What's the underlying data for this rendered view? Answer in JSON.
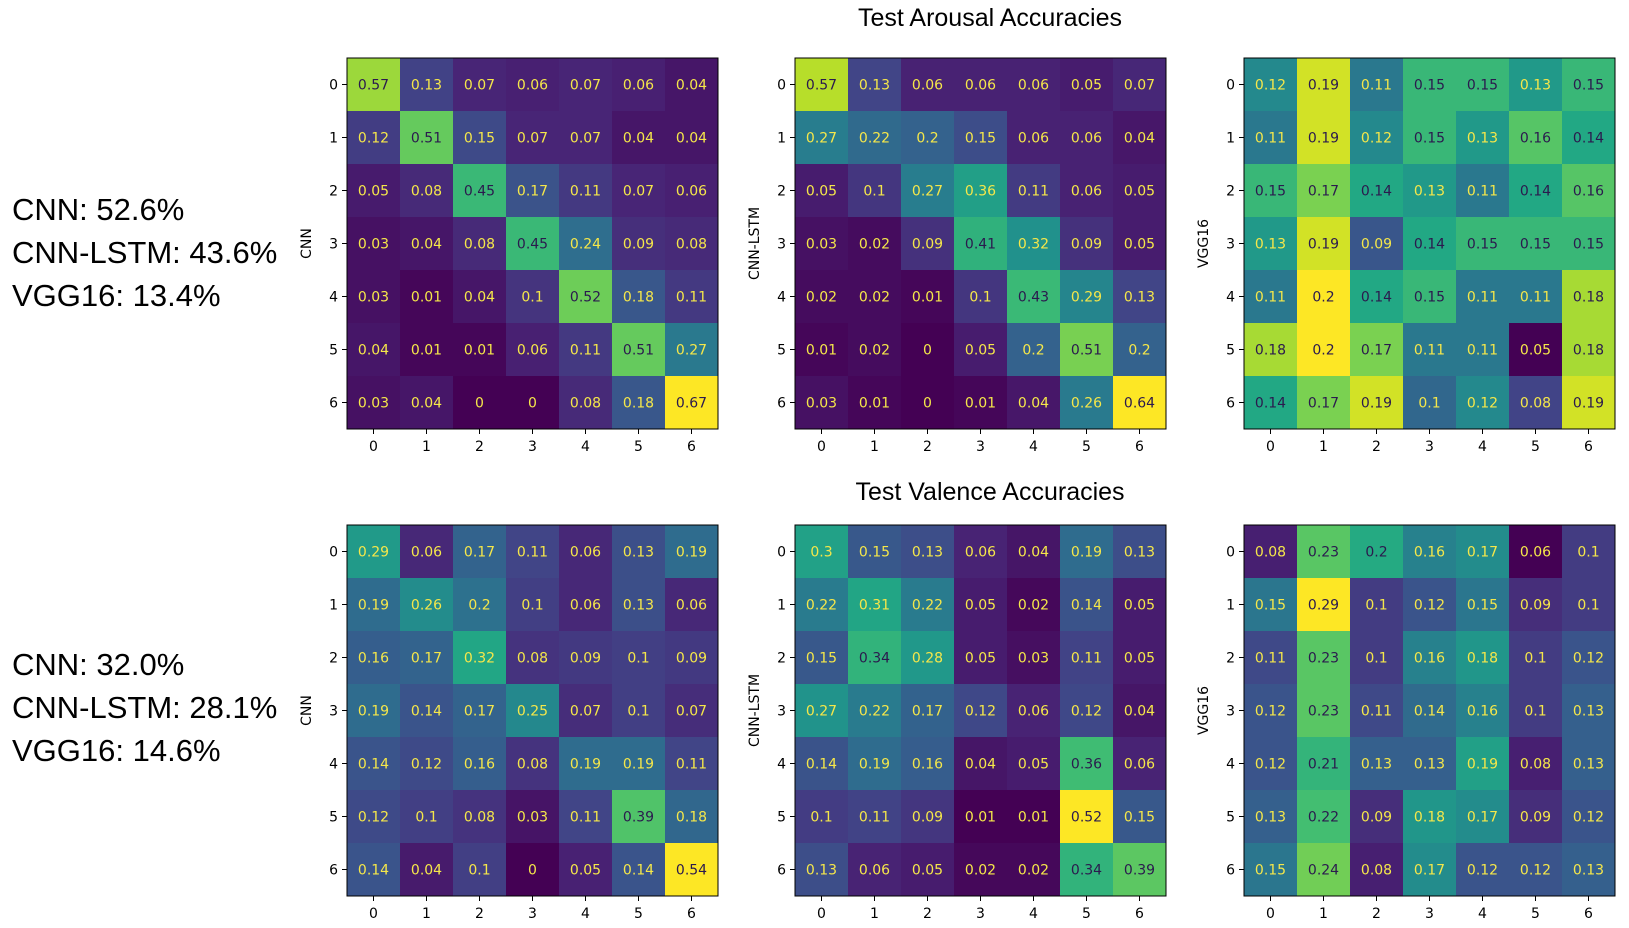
{
  "sections": [
    {
      "title": "Test Arousal Accuracies",
      "accuracies": [
        "CNN: 52.6%",
        "CNN-LSTM: 43.6%",
        "VGG16: 13.4%"
      ]
    },
    {
      "title": "Test Valence Accuracies",
      "accuracies": [
        "CNN: 32.0%",
        "CNN-LSTM: 28.1%",
        "VGG16: 14.6%"
      ]
    }
  ],
  "chart_data": [
    {
      "type": "heatmap",
      "section": "Test Arousal Accuracies",
      "ylabel": "CNN",
      "colormap": "viridis",
      "x_ticks": [
        "0",
        "1",
        "2",
        "3",
        "4",
        "5",
        "6"
      ],
      "y_ticks": [
        "0",
        "1",
        "2",
        "3",
        "4",
        "5",
        "6"
      ],
      "values": [
        [
          0.57,
          0.13,
          0.07,
          0.06,
          0.07,
          0.06,
          0.04
        ],
        [
          0.12,
          0.51,
          0.15,
          0.07,
          0.07,
          0.04,
          0.04
        ],
        [
          0.05,
          0.08,
          0.45,
          0.17,
          0.11,
          0.07,
          0.06
        ],
        [
          0.03,
          0.04,
          0.08,
          0.45,
          0.24,
          0.09,
          0.08
        ],
        [
          0.03,
          0.01,
          0.04,
          0.1,
          0.52,
          0.18,
          0.11
        ],
        [
          0.04,
          0.01,
          0.01,
          0.06,
          0.11,
          0.51,
          0.27
        ],
        [
          0.03,
          0.04,
          0,
          0,
          0.08,
          0.18,
          0.67
        ]
      ]
    },
    {
      "type": "heatmap",
      "section": "Test Arousal Accuracies",
      "ylabel": "CNN-LSTM",
      "colormap": "viridis",
      "x_ticks": [
        "0",
        "1",
        "2",
        "3",
        "4",
        "5",
        "6"
      ],
      "y_ticks": [
        "0",
        "1",
        "2",
        "3",
        "4",
        "5",
        "6"
      ],
      "values": [
        [
          0.57,
          0.13,
          0.06,
          0.06,
          0.06,
          0.05,
          0.07
        ],
        [
          0.27,
          0.22,
          0.2,
          0.15,
          0.06,
          0.06,
          0.04
        ],
        [
          0.05,
          0.1,
          0.27,
          0.36,
          0.11,
          0.06,
          0.05
        ],
        [
          0.03,
          0.02,
          0.09,
          0.41,
          0.32,
          0.09,
          0.05
        ],
        [
          0.02,
          0.02,
          0.01,
          0.1,
          0.43,
          0.29,
          0.13
        ],
        [
          0.01,
          0.02,
          0,
          0.05,
          0.2,
          0.51,
          0.2
        ],
        [
          0.03,
          0.01,
          0,
          0.01,
          0.04,
          0.26,
          0.64
        ]
      ]
    },
    {
      "type": "heatmap",
      "section": "Test Arousal Accuracies",
      "ylabel": "VGG16",
      "colormap": "viridis",
      "x_ticks": [
        "0",
        "1",
        "2",
        "3",
        "4",
        "5",
        "6"
      ],
      "y_ticks": [
        "0",
        "1",
        "2",
        "3",
        "4",
        "5",
        "6"
      ],
      "values": [
        [
          0.12,
          0.19,
          0.11,
          0.15,
          0.15,
          0.13,
          0.15
        ],
        [
          0.11,
          0.19,
          0.12,
          0.15,
          0.13,
          0.16,
          0.14
        ],
        [
          0.15,
          0.17,
          0.14,
          0.13,
          0.11,
          0.14,
          0.16
        ],
        [
          0.13,
          0.19,
          0.09,
          0.14,
          0.15,
          0.15,
          0.15
        ],
        [
          0.11,
          0.2,
          0.14,
          0.15,
          0.11,
          0.11,
          0.18
        ],
        [
          0.18,
          0.2,
          0.17,
          0.11,
          0.11,
          0.05,
          0.18
        ],
        [
          0.14,
          0.17,
          0.19,
          0.1,
          0.12,
          0.08,
          0.19
        ]
      ]
    },
    {
      "type": "heatmap",
      "section": "Test Valence Accuracies",
      "ylabel": "CNN",
      "colormap": "viridis",
      "x_ticks": [
        "0",
        "1",
        "2",
        "3",
        "4",
        "5",
        "6"
      ],
      "y_ticks": [
        "0",
        "1",
        "2",
        "3",
        "4",
        "5",
        "6"
      ],
      "values": [
        [
          0.29,
          0.06,
          0.17,
          0.11,
          0.06,
          0.13,
          0.19
        ],
        [
          0.19,
          0.26,
          0.2,
          0.1,
          0.06,
          0.13,
          0.06
        ],
        [
          0.16,
          0.17,
          0.32,
          0.08,
          0.09,
          0.1,
          0.09
        ],
        [
          0.19,
          0.14,
          0.17,
          0.25,
          0.07,
          0.1,
          0.07
        ],
        [
          0.14,
          0.12,
          0.16,
          0.08,
          0.19,
          0.19,
          0.11
        ],
        [
          0.12,
          0.1,
          0.08,
          0.03,
          0.11,
          0.39,
          0.18
        ],
        [
          0.14,
          0.04,
          0.1,
          0,
          0.05,
          0.14,
          0.54
        ]
      ]
    },
    {
      "type": "heatmap",
      "section": "Test Valence Accuracies",
      "ylabel": "CNN-LSTM",
      "colormap": "viridis",
      "x_ticks": [
        "0",
        "1",
        "2",
        "3",
        "4",
        "5",
        "6"
      ],
      "y_ticks": [
        "0",
        "1",
        "2",
        "3",
        "4",
        "5",
        "6"
      ],
      "values": [
        [
          0.3,
          0.15,
          0.13,
          0.06,
          0.04,
          0.19,
          0.13
        ],
        [
          0.22,
          0.31,
          0.22,
          0.05,
          0.02,
          0.14,
          0.05
        ],
        [
          0.15,
          0.34,
          0.28,
          0.05,
          0.03,
          0.11,
          0.05
        ],
        [
          0.27,
          0.22,
          0.17,
          0.12,
          0.06,
          0.12,
          0.04
        ],
        [
          0.14,
          0.19,
          0.16,
          0.04,
          0.05,
          0.36,
          0.06
        ],
        [
          0.1,
          0.11,
          0.09,
          0.01,
          0.01,
          0.52,
          0.15
        ],
        [
          0.13,
          0.06,
          0.05,
          0.02,
          0.02,
          0.34,
          0.39
        ]
      ]
    },
    {
      "type": "heatmap",
      "section": "Test Valence Accuracies",
      "ylabel": "VGG16",
      "colormap": "viridis",
      "x_ticks": [
        "0",
        "1",
        "2",
        "3",
        "4",
        "5",
        "6"
      ],
      "y_ticks": [
        "0",
        "1",
        "2",
        "3",
        "4",
        "5",
        "6"
      ],
      "values": [
        [
          0.08,
          0.23,
          0.2,
          0.16,
          0.17,
          0.06,
          0.1
        ],
        [
          0.15,
          0.29,
          0.1,
          0.12,
          0.15,
          0.09,
          0.1
        ],
        [
          0.11,
          0.23,
          0.1,
          0.16,
          0.18,
          0.1,
          0.12
        ],
        [
          0.12,
          0.23,
          0.11,
          0.14,
          0.16,
          0.1,
          0.13
        ],
        [
          0.12,
          0.21,
          0.13,
          0.13,
          0.19,
          0.08,
          0.13
        ],
        [
          0.13,
          0.22,
          0.09,
          0.18,
          0.17,
          0.09,
          0.12
        ],
        [
          0.15,
          0.24,
          0.08,
          0.17,
          0.12,
          0.12,
          0.13
        ]
      ]
    }
  ]
}
